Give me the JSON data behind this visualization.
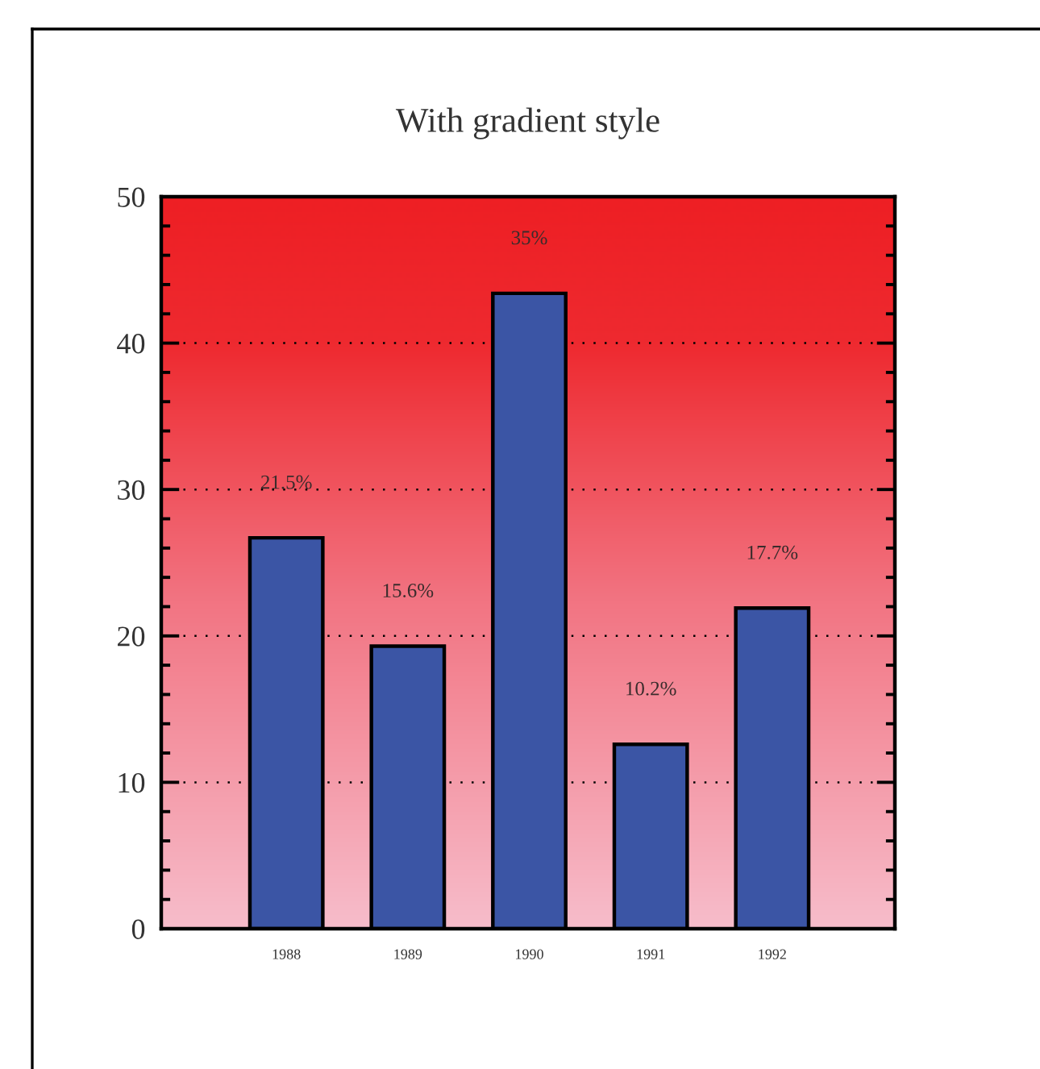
{
  "chart_data": {
    "type": "bar",
    "title": "With gradient style",
    "categories": [
      "1988",
      "1989",
      "1990",
      "1991",
      "1992"
    ],
    "values": [
      26.7,
      19.3,
      43.4,
      12.6,
      21.9
    ],
    "color": "#3b55a5",
    "annotations": [
      {
        "text": "21.5%",
        "x": "1988",
        "y": 26.7
      },
      {
        "text": "15.6%",
        "x": "1989",
        "y": 19.3
      },
      {
        "text": "35%",
        "x": "1990",
        "y": 43.4
      },
      {
        "text": "10.2%",
        "x": "1991",
        "y": 12.6
      },
      {
        "text": "17.7%",
        "x": "1992",
        "y": 21.9
      }
    ],
    "ylim": [
      0,
      50
    ],
    "yticks": [
      0,
      10,
      20,
      30,
      40,
      50
    ],
    "grid": "y"
  }
}
